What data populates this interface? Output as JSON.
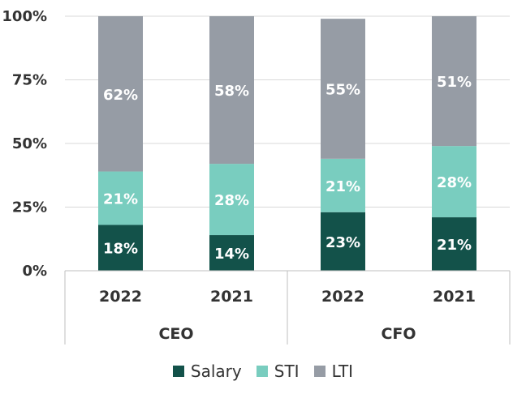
{
  "chart_data": {
    "type": "bar",
    "stacked": true,
    "percent": true,
    "categories": [
      "2022",
      "2021",
      "2022",
      "2021"
    ],
    "groups": [
      {
        "label": "CEO",
        "categories": [
          "2022",
          "2021"
        ]
      },
      {
        "label": "CFO",
        "categories": [
          "2022",
          "2021"
        ]
      }
    ],
    "series": [
      {
        "name": "Salary",
        "color": "#13524a",
        "values": [
          18,
          14,
          23,
          21
        ],
        "labels": [
          "18%",
          "14%",
          "23%",
          "21%"
        ]
      },
      {
        "name": "STI",
        "color": "#79cdbf",
        "values": [
          21,
          28,
          21,
          28
        ],
        "labels": [
          "21%",
          "28%",
          "21%",
          "28%"
        ]
      },
      {
        "name": "LTI",
        "color": "#969ca5",
        "values": [
          62,
          58,
          55,
          51
        ],
        "labels": [
          "62%",
          "58%",
          "55%",
          "51%"
        ]
      }
    ],
    "yticks": [
      "0%",
      "25%",
      "50%",
      "75%",
      "100%"
    ],
    "ylim": [
      0,
      100
    ],
    "grid": true,
    "legend_position": "bottom"
  }
}
